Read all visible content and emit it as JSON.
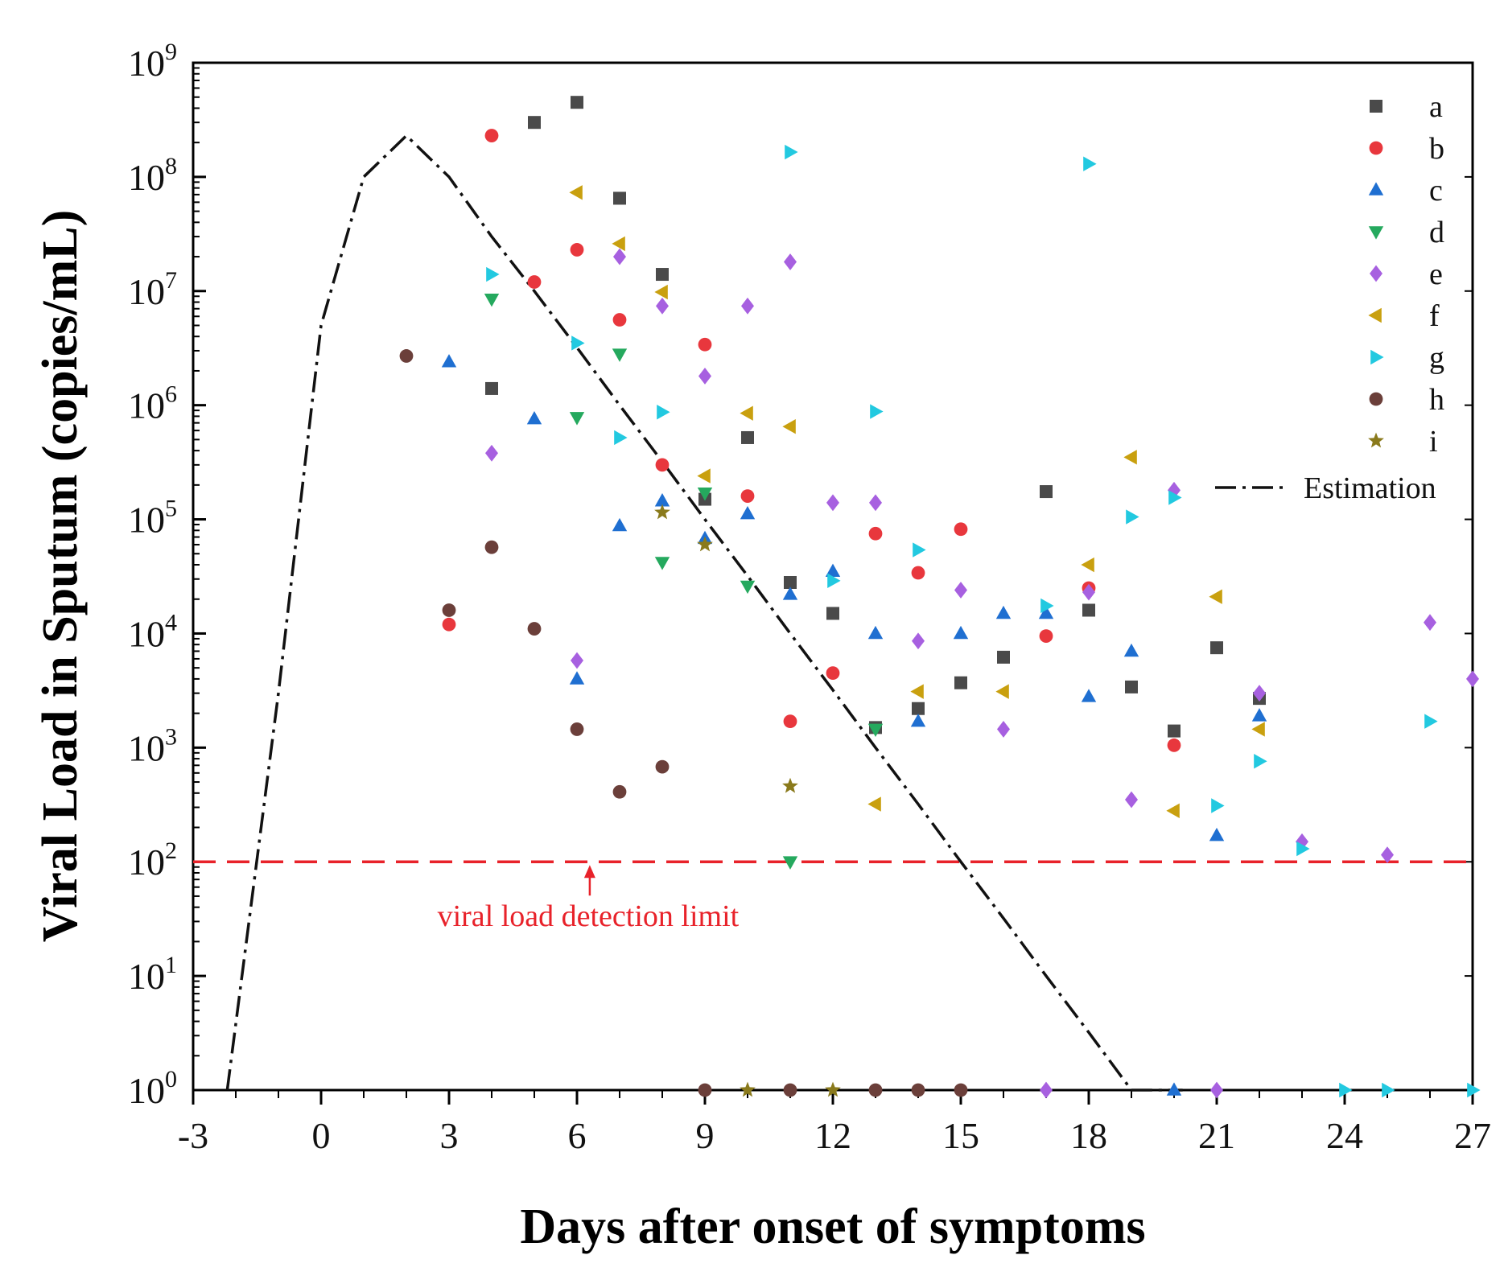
{
  "chart_data": {
    "type": "scatter",
    "title": "",
    "xlabel": "Days after onset of symptoms",
    "ylabel": "Viral Load in Sputum (copies/mL)",
    "x_scale": "linear",
    "y_scale": "log10",
    "xlim": [
      -3,
      27
    ],
    "ylim": [
      1,
      1000000000
    ],
    "x_ticks": [
      -3,
      0,
      3,
      6,
      9,
      12,
      15,
      18,
      21,
      24,
      27
    ],
    "x_tick_labels": [
      "-3",
      "0",
      "3",
      "6",
      "9",
      "12",
      "15",
      "18",
      "21",
      "24",
      "27"
    ],
    "y_tick_exponents": [
      0,
      1,
      2,
      3,
      4,
      5,
      6,
      7,
      8,
      9
    ],
    "y_tick_base": "10",
    "grid": false,
    "legend_position": "top-right",
    "series": [
      {
        "name": "a",
        "marker": "square",
        "color": "#4a4a4a",
        "points": [
          [
            4,
            1400000
          ],
          [
            5,
            300000000
          ],
          [
            6,
            450000000
          ],
          [
            7,
            65000000
          ],
          [
            8,
            14000000
          ],
          [
            9,
            150000
          ],
          [
            10,
            520000
          ],
          [
            11,
            28000
          ],
          [
            12,
            15000
          ],
          [
            13,
            1500
          ],
          [
            14,
            2200
          ],
          [
            15,
            3700
          ],
          [
            16,
            6200
          ],
          [
            17,
            175000
          ],
          [
            18,
            16000
          ],
          [
            19,
            3400
          ],
          [
            20,
            1400
          ],
          [
            21,
            7500
          ],
          [
            22,
            2700
          ]
        ]
      },
      {
        "name": "b",
        "marker": "circle",
        "color": "#e8373d",
        "points": [
          [
            3,
            12000
          ],
          [
            4,
            230000000
          ],
          [
            5,
            12000000
          ],
          [
            6,
            23000000
          ],
          [
            7,
            5600000
          ],
          [
            8,
            300000
          ],
          [
            9,
            3400000
          ],
          [
            10,
            160000
          ],
          [
            11,
            1700
          ],
          [
            12,
            4500
          ],
          [
            13,
            75000
          ],
          [
            14,
            34000
          ],
          [
            15,
            82000
          ],
          [
            17,
            9500
          ],
          [
            18,
            25000
          ],
          [
            20,
            1050
          ]
        ]
      },
      {
        "name": "c",
        "marker": "triangle-up",
        "color": "#1f6fd1",
        "points": [
          [
            3,
            2400000
          ],
          [
            5,
            760000
          ],
          [
            6,
            4000
          ],
          [
            7,
            88000
          ],
          [
            8,
            145000
          ],
          [
            9,
            68000
          ],
          [
            10,
            112000
          ],
          [
            11,
            22000
          ],
          [
            12,
            35000
          ],
          [
            13,
            10000
          ],
          [
            14,
            1700
          ],
          [
            15,
            10000
          ],
          [
            16,
            15000
          ],
          [
            17,
            15000
          ],
          [
            18,
            2800
          ],
          [
            19,
            7000
          ],
          [
            20,
            1
          ],
          [
            21,
            170
          ],
          [
            22,
            1900
          ]
        ]
      },
      {
        "name": "d",
        "marker": "triangle-down",
        "color": "#25a95e",
        "points": [
          [
            4,
            8500000
          ],
          [
            6,
            780000
          ],
          [
            7,
            2800000
          ],
          [
            8,
            42000
          ],
          [
            9,
            170000
          ],
          [
            10,
            26000
          ],
          [
            11,
            100
          ],
          [
            13,
            1450
          ]
        ]
      },
      {
        "name": "e",
        "marker": "diamond",
        "color": "#a760e0",
        "points": [
          [
            4,
            380000
          ],
          [
            6,
            5800
          ],
          [
            7,
            20000000
          ],
          [
            8,
            7400000
          ],
          [
            9,
            1800000
          ],
          [
            10,
            7400000
          ],
          [
            11,
            18000000
          ],
          [
            12,
            140000
          ],
          [
            13,
            140000
          ],
          [
            14,
            8600
          ],
          [
            15,
            24000
          ],
          [
            16,
            1450
          ],
          [
            17,
            1
          ],
          [
            18,
            23000
          ],
          [
            19,
            350
          ],
          [
            20,
            180000
          ],
          [
            21,
            1
          ],
          [
            22,
            3000
          ],
          [
            23,
            150
          ],
          [
            25,
            115
          ],
          [
            26,
            12500
          ],
          [
            27,
            4000
          ]
        ]
      },
      {
        "name": "f",
        "marker": "triangle-left",
        "color": "#c9a00f",
        "points": [
          [
            6,
            73000000
          ],
          [
            7,
            26000000
          ],
          [
            8,
            9800000
          ],
          [
            9,
            240000
          ],
          [
            10,
            850000
          ],
          [
            11,
            650000
          ],
          [
            13,
            320
          ],
          [
            14,
            3100
          ],
          [
            16,
            3100
          ],
          [
            18,
            40000
          ],
          [
            19,
            350000
          ],
          [
            20,
            280
          ],
          [
            21,
            21000
          ],
          [
            22,
            1450
          ]
        ]
      },
      {
        "name": "g",
        "marker": "triangle-right",
        "color": "#22c9e0",
        "points": [
          [
            4,
            14000000
          ],
          [
            6,
            3500000
          ],
          [
            7,
            520000
          ],
          [
            8,
            870000
          ],
          [
            11,
            165000000
          ],
          [
            12,
            29000
          ],
          [
            13,
            880000
          ],
          [
            14,
            54000
          ],
          [
            17,
            17500
          ],
          [
            18,
            130000000
          ],
          [
            19,
            105000
          ],
          [
            20,
            155000
          ],
          [
            21,
            310
          ],
          [
            22,
            760
          ],
          [
            23,
            130
          ],
          [
            24,
            1
          ],
          [
            25,
            1
          ],
          [
            26,
            1700
          ],
          [
            27,
            1
          ]
        ]
      },
      {
        "name": "h",
        "marker": "circle",
        "color": "#6b3f3a",
        "points": [
          [
            2,
            2700000
          ],
          [
            3,
            16000
          ],
          [
            4,
            57000
          ],
          [
            5,
            11000
          ],
          [
            6,
            1450
          ],
          [
            7,
            410
          ],
          [
            8,
            680
          ],
          [
            9,
            1
          ],
          [
            11,
            1
          ],
          [
            13,
            1
          ],
          [
            14,
            1
          ],
          [
            15,
            1
          ]
        ]
      },
      {
        "name": "i",
        "marker": "star",
        "color": "#8a7a1c",
        "points": [
          [
            8,
            115000
          ],
          [
            9,
            60000
          ],
          [
            10,
            1
          ],
          [
            11,
            460
          ],
          [
            12,
            1
          ]
        ]
      }
    ],
    "estimation": {
      "name": "Estimation",
      "style": "dash-dot",
      "color": "#111111",
      "points": [
        [
          -2.2,
          1
        ],
        [
          -1,
          3000
        ],
        [
          0,
          5000000
        ],
        [
          1,
          100000000
        ],
        [
          2,
          230000000
        ],
        [
          3,
          100000000
        ],
        [
          4,
          30000000
        ],
        [
          5,
          10000000
        ],
        [
          6,
          3200000
        ],
        [
          7,
          1000000
        ],
        [
          8,
          320000
        ],
        [
          9,
          100000
        ],
        [
          10,
          32000
        ],
        [
          11,
          10000
        ],
        [
          12,
          3200
        ],
        [
          13,
          1000
        ],
        [
          14,
          320
        ],
        [
          15,
          100
        ],
        [
          16,
          32
        ],
        [
          17,
          10
        ],
        [
          18,
          3.2
        ],
        [
          19,
          1
        ],
        [
          20,
          1
        ],
        [
          20.2,
          1
        ]
      ]
    },
    "detection_limit": {
      "value": 100,
      "color": "#e8222a",
      "label": "viral load detection limit",
      "arrow_x": 6.3
    }
  }
}
